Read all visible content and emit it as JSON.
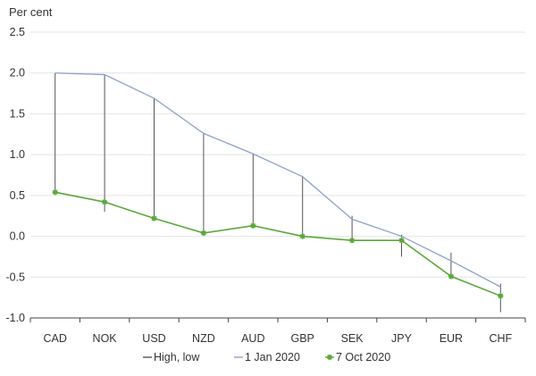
{
  "chart_data": {
    "type": "line",
    "ylabel": "Per cent",
    "categories": [
      "CAD",
      "NOK",
      "USD",
      "NZD",
      "AUD",
      "GBP",
      "SEK",
      "JPY",
      "EUR",
      "CHF"
    ],
    "ylim": [
      -1.0,
      2.5
    ],
    "yticks": [
      -1.0,
      -0.5,
      0.0,
      0.5,
      1.0,
      1.5,
      2.0,
      2.5
    ],
    "ytick_labels": [
      "-1.0",
      "-0.5",
      "0.0",
      "0.5",
      "1.0",
      "1.5",
      "2.0",
      "2.5"
    ],
    "grid": true,
    "legend_position": "bottom",
    "series": [
      {
        "name": "High, low",
        "kind": "range",
        "color": "#555555",
        "high": [
          2.0,
          1.98,
          1.69,
          1.26,
          1.01,
          0.74,
          0.25,
          0.02,
          -0.2,
          -0.58
        ],
        "low": [
          0.53,
          0.3,
          0.22,
          0.03,
          0.12,
          -0.01,
          -0.06,
          -0.25,
          -0.49,
          -0.93
        ]
      },
      {
        "name": "1 Jan 2020",
        "kind": "line",
        "color": "#8fa3c7",
        "values": [
          2.0,
          1.98,
          1.69,
          1.26,
          1.01,
          0.73,
          0.21,
          0.0,
          -0.3,
          -0.62
        ]
      },
      {
        "name": "7 Oct 2020",
        "kind": "line-marker",
        "color": "#5aa83c",
        "values": [
          0.54,
          0.42,
          0.22,
          0.04,
          0.13,
          0.0,
          -0.05,
          -0.05,
          -0.49,
          -0.73
        ]
      }
    ]
  }
}
